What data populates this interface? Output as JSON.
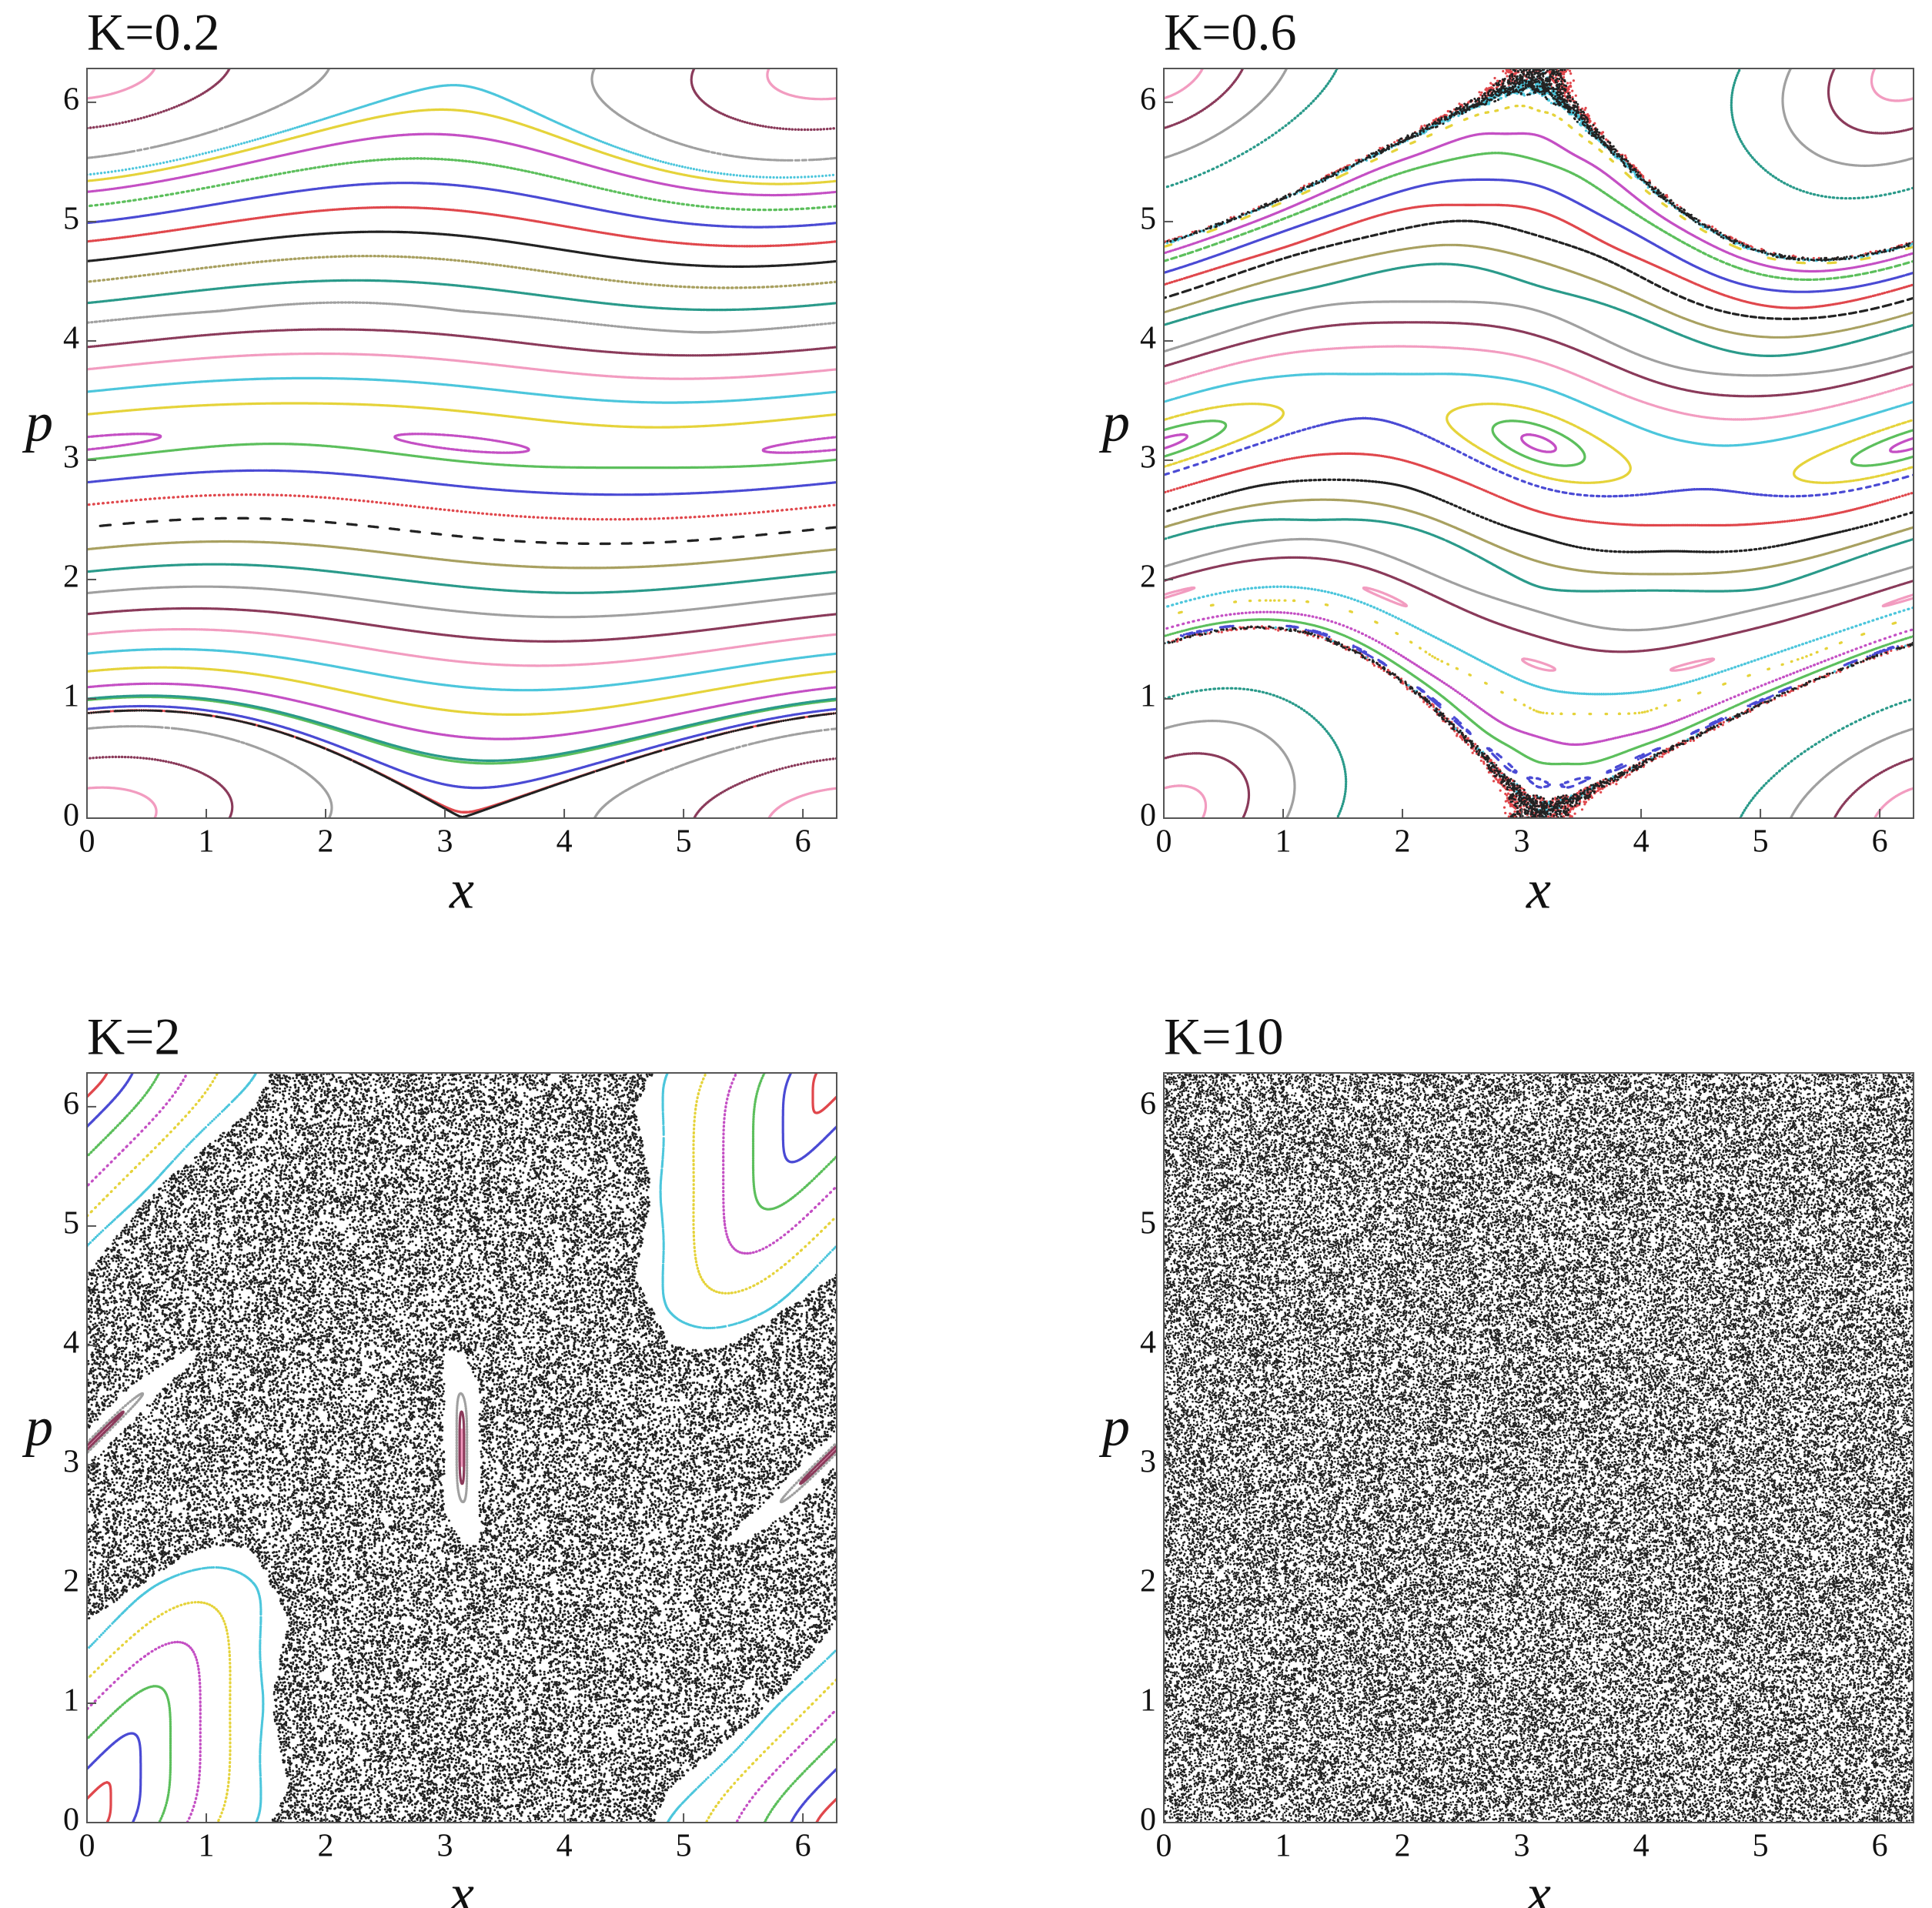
{
  "chart_data": [
    {
      "type": "scatter",
      "title": "K=0.2",
      "xlabel": "x",
      "ylabel": "p",
      "xlim": [
        0,
        6.2832
      ],
      "ylim": [
        0,
        6.2832
      ],
      "xticks": [
        0,
        1,
        2,
        3,
        4,
        5,
        6
      ],
      "yticks": [
        0,
        1,
        2,
        3,
        4,
        5,
        6
      ],
      "grid": false,
      "colors": [
        "#e0474c",
        "#4a4ad4",
        "#5cbf5c",
        "#c44fc4",
        "#e5d33a",
        "#4cc6dc",
        "#f29cc0",
        "#8a3a5a",
        "#a0a0a0",
        "#2a9a8a",
        "#a8a060",
        "#222222"
      ]
    },
    {
      "type": "scatter",
      "title": "K=0.6",
      "xlabel": "x",
      "ylabel": "p",
      "xlim": [
        0,
        6.2832
      ],
      "ylim": [
        0,
        6.2832
      ],
      "xticks": [
        0,
        1,
        2,
        3,
        4,
        5,
        6
      ],
      "yticks": [
        0,
        1,
        2,
        3,
        4,
        5,
        6
      ],
      "grid": false,
      "colors": [
        "#e0474c",
        "#4a4ad4",
        "#5cbf5c",
        "#c44fc4",
        "#e5d33a",
        "#4cc6dc",
        "#f29cc0",
        "#8a3a5a",
        "#a0a0a0",
        "#2a9a8a",
        "#a8a060",
        "#222222"
      ]
    },
    {
      "type": "scatter",
      "title": "K=2",
      "xlabel": "x",
      "ylabel": "p",
      "xlim": [
        0,
        6.2832
      ],
      "ylim": [
        0,
        6.2832
      ],
      "xticks": [
        0,
        1,
        2,
        3,
        4,
        5,
        6
      ],
      "yticks": [
        0,
        1,
        2,
        3,
        4,
        5,
        6
      ],
      "grid": false,
      "colors": [
        "#e0474c",
        "#4a4ad4",
        "#5cbf5c",
        "#c44fc4",
        "#e5d33a",
        "#4cc6dc",
        "#f29cc0",
        "#8a3a5a",
        "#a0a0a0",
        "#2a9a8a",
        "#a8a060",
        "#222222"
      ]
    },
    {
      "type": "scatter",
      "title": "K=10",
      "xlabel": "x",
      "ylabel": "p",
      "xlim": [
        0,
        6.2832
      ],
      "ylim": [
        0,
        6.2832
      ],
      "xticks": [
        0,
        1,
        2,
        3,
        4,
        5,
        6
      ],
      "yticks": [
        0,
        1,
        2,
        3,
        4,
        5,
        6
      ],
      "grid": false,
      "colors": [
        "#222222"
      ]
    }
  ]
}
